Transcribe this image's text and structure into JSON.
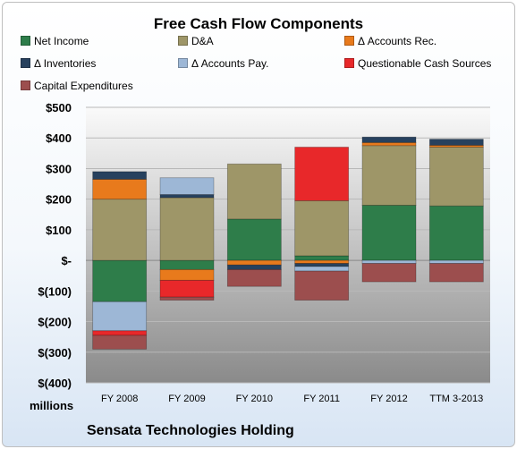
{
  "chart_data": {
    "type": "bar",
    "stacked": true,
    "title": "Free Cash Flow Components",
    "company": "Sensata Technologies Holding",
    "y_unit_label": "millions",
    "categories": [
      "FY 2008",
      "FY 2009",
      "FY 2010",
      "FY 2011",
      "FY 2012",
      "TTM 3-2013"
    ],
    "ylim": [
      -400,
      500
    ],
    "yticks": [
      500,
      400,
      300,
      200,
      100,
      0,
      -100,
      -200,
      -300,
      -400
    ],
    "ytick_labels": [
      "$500",
      "$400",
      "$300",
      "$200",
      "$100",
      "$-",
      "$(100)",
      "$(200)",
      "$(300)",
      "$(400)"
    ],
    "grid": true,
    "legend_position": "top",
    "series": [
      {
        "name": "Net Income",
        "color": "#2e7d4a",
        "values": [
          -135,
          -30,
          135,
          15,
          180,
          178
        ]
      },
      {
        "name": "D&A",
        "color": "#9e9668",
        "values": [
          200,
          205,
          180,
          180,
          195,
          192
        ]
      },
      {
        "name": "Δ Accounts Rec.",
        "color": "#e87a1c",
        "values": [
          65,
          -35,
          -15,
          -10,
          10,
          6
        ]
      },
      {
        "name": "Δ Inventories",
        "color": "#27415e",
        "values": [
          25,
          10,
          -15,
          -10,
          18,
          20
        ]
      },
      {
        "name": "Δ Accounts Pay.",
        "color": "#9db7d6",
        "values": [
          -95,
          55,
          0,
          -15,
          -10,
          -10
        ]
      },
      {
        "name": "Questionable Cash Sources",
        "color": "#e8282a",
        "values": [
          -15,
          -55,
          0,
          175,
          0,
          0
        ]
      },
      {
        "name": "Capital Expenditures",
        "color": "#9c4e4e",
        "values": [
          -45,
          -10,
          -55,
          -95,
          -60,
          -60
        ]
      }
    ]
  }
}
